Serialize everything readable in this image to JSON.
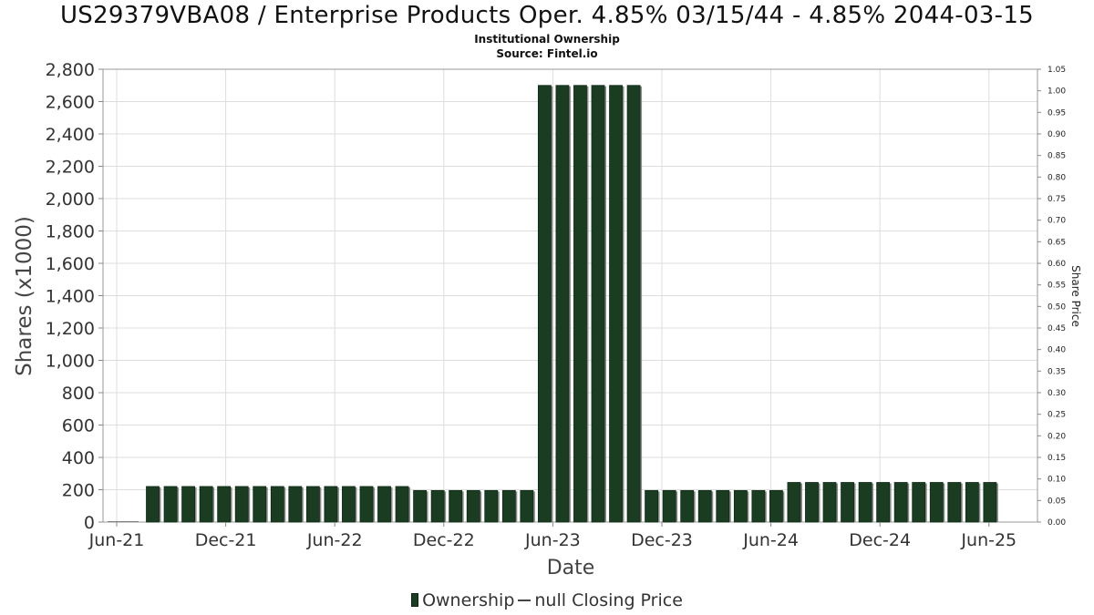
{
  "chart_data": {
    "type": "bar",
    "title": "US29379VBA08 / Enterprise Products Oper. 4.85% 03/15/44 - 4.85% 2044-03-15",
    "subtitle": "Institutional Ownership",
    "source": "Source: Fintel.io",
    "xlabel": "Date",
    "ylabel": "Shares (x1000)",
    "y2label": "Share Price",
    "ylim": [
      0,
      2800
    ],
    "y2lim": [
      0,
      1.05
    ],
    "y_ticks": [
      "0",
      "200",
      "400",
      "600",
      "800",
      "1,000",
      "1,200",
      "1,400",
      "1,600",
      "1,800",
      "2,000",
      "2,200",
      "2,400",
      "2,600",
      "2,800"
    ],
    "y2_ticks": [
      "0.00",
      "0.05",
      "0.10",
      "0.15",
      "0.20",
      "0.25",
      "0.30",
      "0.35",
      "0.40",
      "0.45",
      "0.50",
      "0.55",
      "0.60",
      "0.65",
      "0.70",
      "0.75",
      "0.80",
      "0.85",
      "0.90",
      "0.95",
      "1.00",
      "1.05"
    ],
    "x_ticks": [
      "Jun-21",
      "Dec-21",
      "Jun-22",
      "Dec-22",
      "Jun-23",
      "Dec-23",
      "Jun-24",
      "Dec-24",
      "Jun-25"
    ],
    "grid": true,
    "legend_position": "bottom",
    "series": [
      {
        "name": "Ownership",
        "color": "#1a3d22",
        "values": [
          220,
          220,
          220,
          220,
          220,
          220,
          220,
          220,
          220,
          220,
          220,
          220,
          220,
          220,
          220,
          195,
          195,
          195,
          195,
          195,
          195,
          195,
          2700,
          2700,
          2700,
          2700,
          2700,
          2700,
          195,
          195,
          195,
          195,
          195,
          195,
          195,
          195,
          245,
          245,
          245,
          245,
          245,
          245,
          245,
          245,
          245,
          245,
          245,
          245
        ]
      },
      {
        "name": "null Closing Price",
        "color": "#444444",
        "values": []
      }
    ]
  },
  "legend": {
    "ownership_label": "Ownership",
    "price_label": "null Closing Price"
  }
}
